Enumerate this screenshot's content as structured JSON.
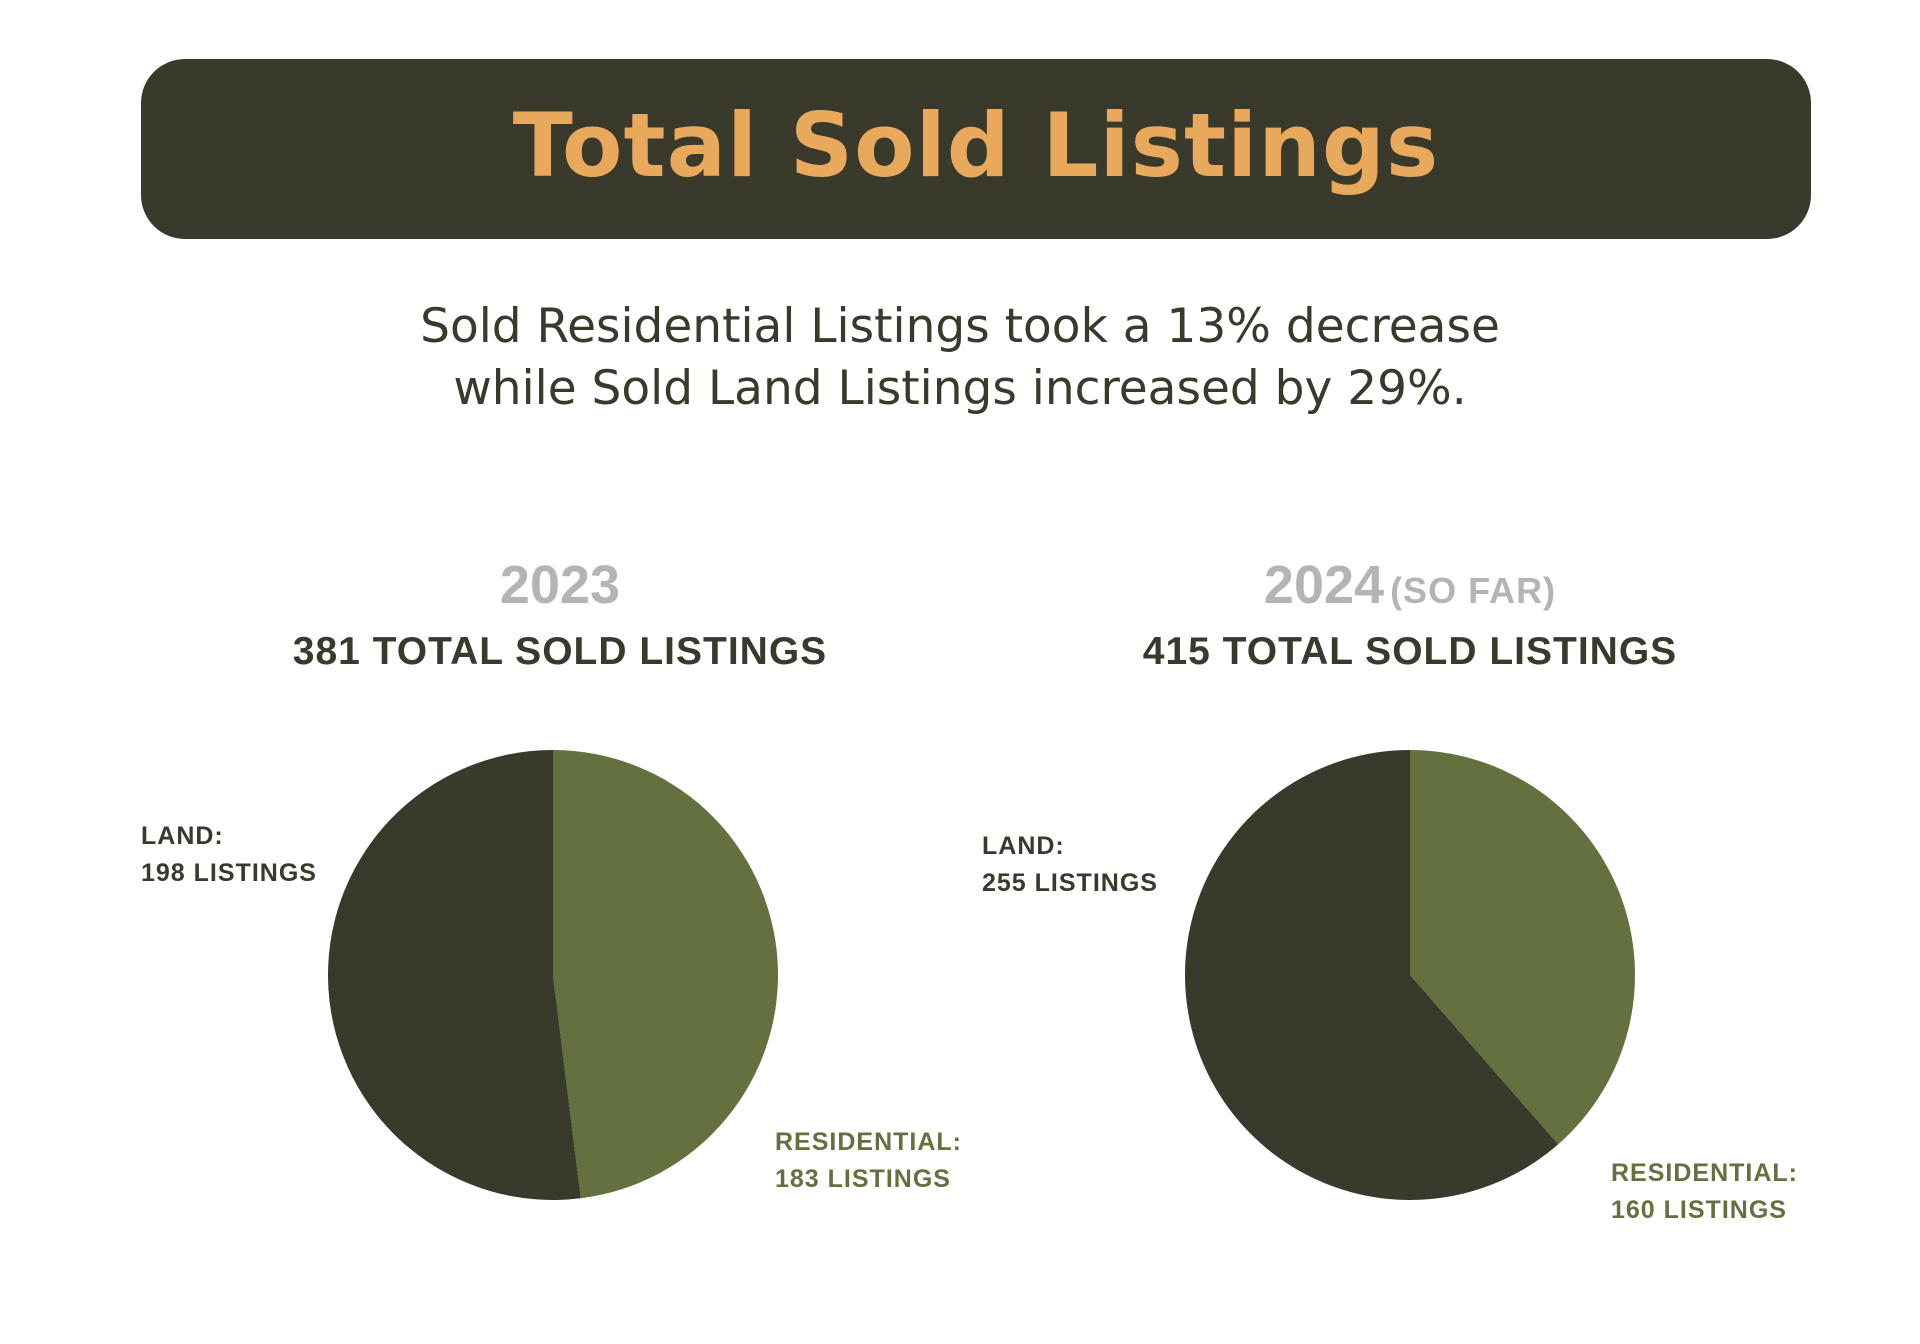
{
  "header": {
    "title": "Total Sold Listings"
  },
  "summary": {
    "line1": "Sold Residential Listings took a 13% decrease",
    "line2": "while Sold Land Listings increased by 29%."
  },
  "colors": {
    "dark": "#393a2c",
    "accent": "#e8a95c",
    "residential": "#65703f",
    "land": "#393a2c",
    "year_gray": "#b4b4b4"
  },
  "chart_data": [
    {
      "type": "pie",
      "year": "2023",
      "year_note": "",
      "title": "381 TOTAL SOLD LISTINGS",
      "total": 381,
      "slices": [
        {
          "name": "RESIDENTIAL:",
          "value": 183,
          "detail": "183 LISTINGS",
          "color": "#65703f"
        },
        {
          "name": "LAND:",
          "value": 198,
          "detail": "198 LISTINGS",
          "color": "#393a2c"
        }
      ]
    },
    {
      "type": "pie",
      "year": "2024",
      "year_note": "(SO FAR)",
      "title": "415 TOTAL SOLD LISTINGS",
      "total": 415,
      "slices": [
        {
          "name": "RESIDENTIAL:",
          "value": 160,
          "detail": "160 LISTINGS",
          "color": "#65703f"
        },
        {
          "name": "LAND:",
          "value": 255,
          "detail": "255 LISTINGS",
          "color": "#393a2c"
        }
      ]
    }
  ]
}
